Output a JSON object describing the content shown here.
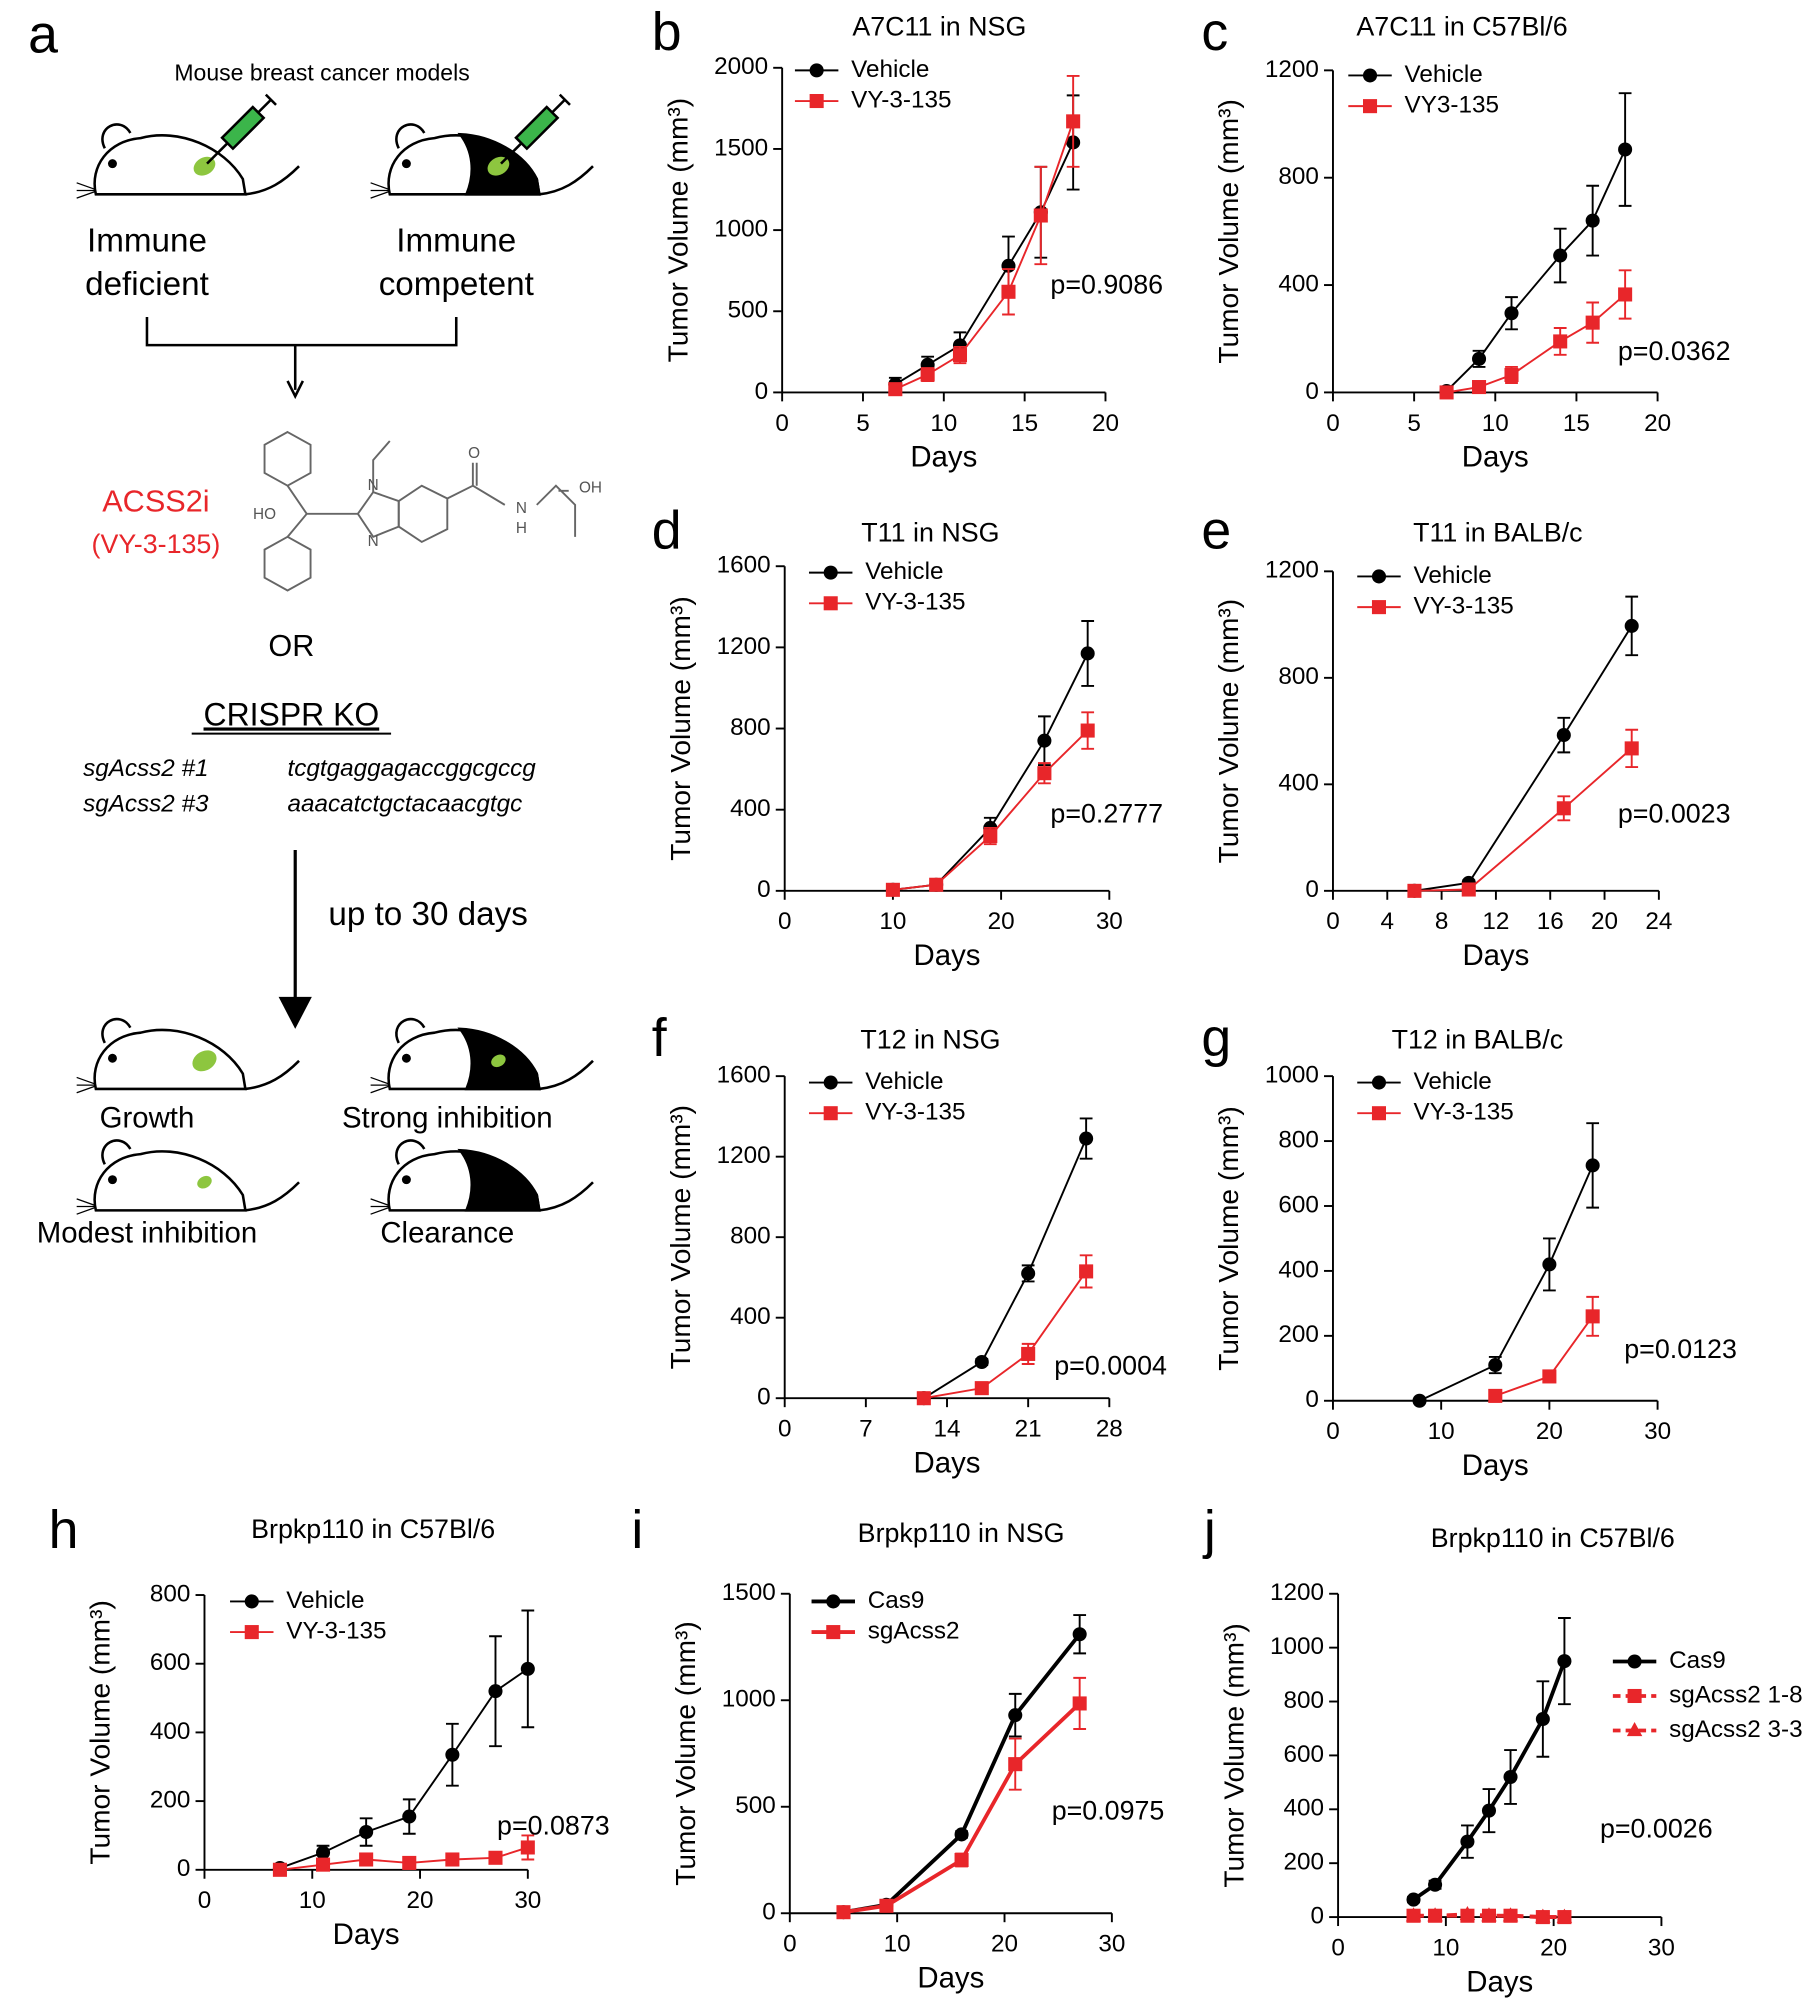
{
  "schematic": {
    "label": "a",
    "heading": "Mouse breast cancer models",
    "models": [
      [
        "Immune",
        "deficient"
      ],
      [
        "Immune",
        "competent"
      ]
    ],
    "drug": "ACSS2i",
    "drug_code": "(VY-3-135)",
    "structure_atoms": [
      "HO",
      "N",
      "N",
      "O",
      "N",
      "H",
      "OH"
    ],
    "or": "OR",
    "crispr": "CRISPR KO",
    "guides": [
      [
        "sgAcss2 #1",
        "tcgtgaggagaccggcgccg"
      ],
      [
        "sgAcss2 #3",
        "aaacatctgctacaacgtgc"
      ]
    ],
    "duration": "up to 30 days",
    "outcomes": [
      "Growth",
      "Strong inhibition",
      "Modest inhibition",
      "Clearance"
    ]
  },
  "chart_data": [
    {
      "type": "line",
      "label": "b",
      "title": "A7C11 in NSG",
      "xlabel": "Days",
      "ylabel": "Tumor Volume (mm³)",
      "annotation": "p=0.9086",
      "x": [
        7,
        9,
        11,
        14,
        16,
        18
      ],
      "xlim": [
        0,
        20
      ],
      "xticks": [
        0,
        5,
        10,
        15,
        20
      ],
      "ylim": [
        0,
        2000
      ],
      "yticks": [
        0,
        500,
        1000,
        1500,
        2000
      ],
      "line_width": 1.5,
      "series": [
        {
          "name": "Vehicle",
          "color": "#000000",
          "marker": "circle",
          "values": [
            50,
            170,
            290,
            780,
            1110,
            1540
          ],
          "errors": [
            40,
            50,
            80,
            180,
            280,
            290
          ]
        },
        {
          "name": "VY-3-135",
          "color": "#e8262a",
          "marker": "square",
          "values": [
            20,
            110,
            230,
            620,
            1090,
            1670
          ],
          "errors": [
            20,
            40,
            50,
            140,
            300,
            280
          ]
        }
      ]
    },
    {
      "type": "line",
      "label": "c",
      "title": "A7C11 in C57Bl/6",
      "xlabel": "Days",
      "ylabel": "Tumor Volume (mm³)",
      "annotation": "p=0.0362",
      "x": [
        7,
        9,
        11,
        14,
        16,
        18
      ],
      "xlim": [
        0,
        20
      ],
      "xticks": [
        0,
        5,
        10,
        15,
        20
      ],
      "ylim": [
        0,
        1200
      ],
      "yticks": [
        0,
        400,
        800,
        1200
      ],
      "line_width": 1.5,
      "series": [
        {
          "name": "Vehicle",
          "color": "#000000",
          "marker": "circle",
          "values": [
            5,
            125,
            295,
            510,
            640,
            905
          ],
          "errors": [
            10,
            30,
            60,
            100,
            130,
            210
          ]
        },
        {
          "name": "VY3-135",
          "color": "#e8262a",
          "marker": "square",
          "values": [
            0,
            20,
            65,
            190,
            260,
            365
          ],
          "errors": [
            5,
            10,
            30,
            50,
            75,
            90
          ]
        }
      ]
    },
    {
      "type": "line",
      "label": "d",
      "title": "T11 in NSG",
      "xlabel": "Days",
      "ylabel": "Tumor Volume (mm³)",
      "annotation": "p=0.2777",
      "x": [
        10,
        14,
        19,
        24,
        28
      ],
      "xlim": [
        0,
        30
      ],
      "xticks": [
        0,
        10,
        20,
        30
      ],
      "ylim": [
        0,
        1600
      ],
      "yticks": [
        0,
        400,
        800,
        1200,
        1600
      ],
      "line_width": 1.5,
      "series": [
        {
          "name": "Vehicle",
          "color": "#000000",
          "marker": "circle",
          "values": [
            5,
            30,
            310,
            740,
            1170
          ],
          "errors": [
            5,
            10,
            50,
            120,
            160
          ]
        },
        {
          "name": "VY-3-135",
          "color": "#e8262a",
          "marker": "square",
          "values": [
            5,
            30,
            270,
            580,
            790
          ],
          "errors": [
            5,
            10,
            40,
            50,
            90
          ]
        }
      ]
    },
    {
      "type": "line",
      "label": "e",
      "title": "T11 in BALB/c",
      "xlabel": "Days",
      "ylabel": "Tumor Volume (mm³)",
      "annotation": "p=0.0023",
      "x": [
        6,
        10,
        17,
        22
      ],
      "xlim": [
        0,
        24
      ],
      "xticks": [
        0,
        4,
        8,
        12,
        16,
        20,
        24
      ],
      "ylim": [
        0,
        1200
      ],
      "yticks": [
        0,
        400,
        800,
        1200
      ],
      "line_width": 1.5,
      "series": [
        {
          "name": "Vehicle",
          "color": "#000000",
          "marker": "circle",
          "values": [
            0,
            30,
            585,
            995
          ],
          "errors": [
            5,
            10,
            65,
            110
          ]
        },
        {
          "name": "VY-3-135",
          "color": "#e8262a",
          "marker": "square",
          "values": [
            0,
            5,
            310,
            535
          ],
          "errors": [
            5,
            5,
            45,
            70
          ]
        }
      ]
    },
    {
      "type": "line",
      "label": "f",
      "title": "T12 in NSG",
      "xlabel": "Days",
      "ylabel": "Tumor Volume (mm³)",
      "annotation": "p=0.0004",
      "x": [
        12,
        17,
        21,
        26
      ],
      "xlim": [
        0,
        28
      ],
      "xticks": [
        0,
        7,
        14,
        21,
        28
      ],
      "ylim": [
        0,
        1600
      ],
      "yticks": [
        0,
        400,
        800,
        1200,
        1600
      ],
      "line_width": 1.5,
      "series": [
        {
          "name": "Vehicle",
          "color": "#000000",
          "marker": "circle",
          "values": [
            0,
            180,
            620,
            1290
          ],
          "errors": [
            5,
            15,
            40,
            100
          ]
        },
        {
          "name": "VY-3-135",
          "color": "#e8262a",
          "marker": "square",
          "values": [
            0,
            50,
            220,
            630
          ],
          "errors": [
            5,
            10,
            50,
            80
          ]
        }
      ]
    },
    {
      "type": "line",
      "label": "g",
      "title": "T12 in BALB/c",
      "xlabel": "Days",
      "ylabel": "Tumor Volume (mm³)",
      "annotation": "p=0.0123",
      "x": [
        8,
        15,
        20,
        24
      ],
      "xlim": [
        0,
        30
      ],
      "xticks": [
        0,
        10,
        20,
        30
      ],
      "ylim": [
        0,
        1000
      ],
      "yticks": [
        0,
        200,
        400,
        600,
        800,
        1000
      ],
      "line_width": 1.5,
      "series": [
        {
          "name": "Vehicle",
          "color": "#000000",
          "marker": "circle",
          "values": [
            0,
            110,
            420,
            725
          ],
          "errors": [
            5,
            25,
            80,
            130
          ]
        },
        {
          "name": "VY-3-135",
          "color": "#e8262a",
          "marker": "square",
          "values": [
            null,
            15,
            75,
            260
          ],
          "errors": [
            null,
            5,
            10,
            60
          ]
        }
      ]
    },
    {
      "type": "line",
      "label": "h",
      "title": "Brpkp110 in C57Bl/6",
      "xlabel": "Days",
      "ylabel": "Tumor Volume (mm³)",
      "annotation": "p=0.0873",
      "x": [
        7,
        11,
        15,
        19,
        23,
        27,
        30
      ],
      "xlim": [
        0,
        30
      ],
      "xticks": [
        0,
        10,
        20,
        30
      ],
      "ylim": [
        0,
        800
      ],
      "yticks": [
        0,
        200,
        400,
        600,
        800
      ],
      "line_width": 1.5,
      "series": [
        {
          "name": "Vehicle",
          "color": "#000000",
          "marker": "circle",
          "values": [
            5,
            50,
            110,
            155,
            335,
            520,
            585
          ],
          "errors": [
            5,
            20,
            40,
            50,
            90,
            160,
            170
          ]
        },
        {
          "name": "VY-3-135",
          "color": "#e8262a",
          "marker": "square",
          "values": [
            0,
            15,
            30,
            20,
            30,
            35,
            65
          ],
          "errors": [
            5,
            10,
            10,
            10,
            10,
            15,
            35
          ]
        }
      ]
    },
    {
      "type": "line",
      "label": "i",
      "title": "Brpkp110 in NSG",
      "xlabel": "Days",
      "ylabel": "Tumor Volume (mm³)",
      "annotation": "p=0.0975",
      "x": [
        5,
        9,
        16,
        21,
        27
      ],
      "xlim": [
        0,
        30
      ],
      "xticks": [
        0,
        10,
        20,
        30
      ],
      "ylim": [
        0,
        1500
      ],
      "yticks": [
        0,
        500,
        1000,
        1500
      ],
      "line_width": 3,
      "series": [
        {
          "name": "Cas9",
          "color": "#000000",
          "marker": "circle",
          "values": [
            5,
            40,
            370,
            930,
            1310
          ],
          "errors": [
            5,
            10,
            15,
            100,
            90
          ]
        },
        {
          "name": "sgAcss2",
          "color": "#e8262a",
          "marker": "square",
          "values": [
            5,
            35,
            250,
            700,
            985
          ],
          "errors": [
            5,
            10,
            30,
            120,
            120
          ]
        }
      ]
    },
    {
      "type": "line",
      "label": "j",
      "title": "Brpkp110 in C57Bl/6",
      "xlabel": "Days",
      "ylabel": "Tumor Volume (mm³)",
      "annotation": "p=0.0026",
      "x": [
        7,
        9,
        12,
        14,
        16,
        19,
        21
      ],
      "xlim": [
        0,
        30
      ],
      "xticks": [
        0,
        10,
        20,
        30
      ],
      "ylim": [
        0,
        1200
      ],
      "yticks": [
        0,
        200,
        400,
        600,
        800,
        1000,
        1200
      ],
      "line_width": 3,
      "series": [
        {
          "name": "Cas9",
          "color": "#000000",
          "marker": "circle",
          "values": [
            65,
            120,
            280,
            395,
            520,
            735,
            950
          ],
          "errors": [
            10,
            15,
            60,
            80,
            100,
            140,
            160
          ]
        },
        {
          "name": "sgAcss2 1-8",
          "color": "#e8262a",
          "marker": "square",
          "dash": true,
          "values": [
            5,
            5,
            5,
            5,
            5,
            0,
            0
          ],
          "errors": [
            5,
            5,
            5,
            5,
            5,
            3,
            3
          ]
        },
        {
          "name": "sgAcss2 3-3",
          "color": "#e8262a",
          "marker": "triangle",
          "dash": true,
          "values": [
            5,
            5,
            10,
            5,
            5,
            0,
            0
          ],
          "errors": [
            5,
            5,
            5,
            5,
            5,
            3,
            3
          ]
        }
      ]
    }
  ]
}
